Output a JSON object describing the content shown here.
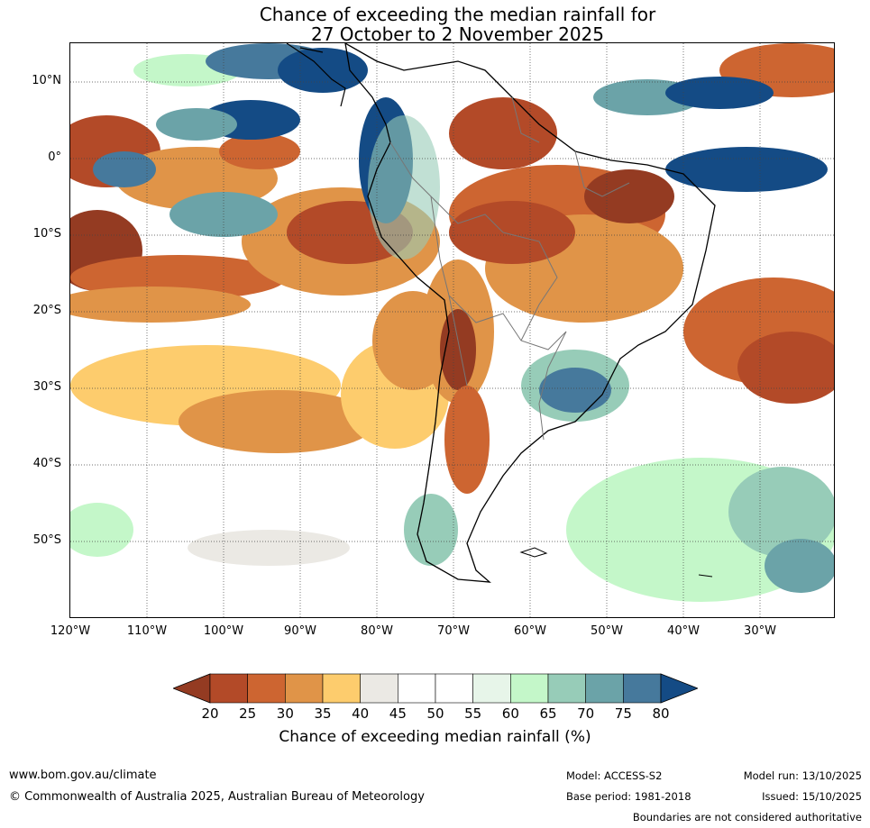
{
  "title": {
    "line1": "Chance of exceeding the median rainfall for",
    "line2": "27 October to 2 November 2025"
  },
  "map": {
    "lat_labels": [
      "10°N",
      "0°",
      "10°S",
      "20°S",
      "30°S",
      "40°S",
      "50°S"
    ],
    "lon_labels": [
      "120°W",
      "110°W",
      "100°W",
      "90°W",
      "80°W",
      "70°W",
      "60°W",
      "50°W",
      "40°W",
      "30°W"
    ],
    "colors": {
      "c20": "#943b22",
      "c25": "#b34a28",
      "c30": "#cd6531",
      "c35": "#e09448",
      "c40": "#fdcc6d",
      "c45": "#ebe9e4",
      "c50": "#ffffff",
      "c55": "#ffffff",
      "c60": "#e7f5e9",
      "c65": "#c4f7c9",
      "c70": "#97ccb8",
      "c75": "#6ba3a8",
      "c80": "#46799c",
      "c85": "#144b85"
    }
  },
  "colorbar": {
    "ticks": [
      "20",
      "25",
      "30",
      "35",
      "40",
      "45",
      "50",
      "55",
      "60",
      "65",
      "70",
      "75",
      "80"
    ],
    "label": "Chance of exceeding median rainfall (%)"
  },
  "footer": {
    "website": "www.bom.gov.au/climate",
    "copyright": "© Commonwealth of Australia 2025, Australian Bureau of Meteorology",
    "model": "Model: ACCESS-S2",
    "base_period": "Base period: 1981-2018",
    "model_run": "Model run: 13/10/2025",
    "issued": "Issued: 15/10/2025",
    "disclaimer": "Boundaries are not considered authoritative"
  }
}
